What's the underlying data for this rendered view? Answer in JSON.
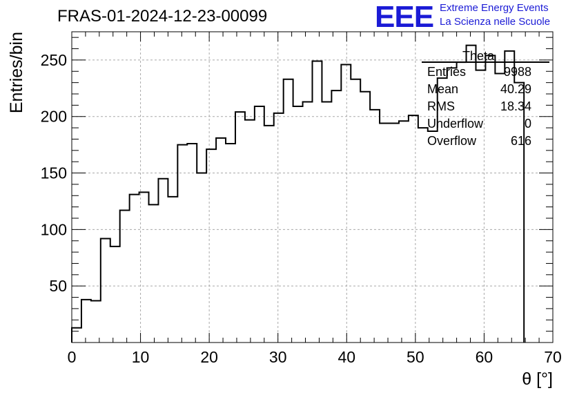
{
  "title": "FRAS-01-2024-12-23-00099",
  "logo": {
    "mark": "EEE",
    "line1": "Extreme Energy Events",
    "line2": "La Scienza nelle Scuole",
    "color": "#1b1bd6"
  },
  "chart_data": {
    "type": "histogram",
    "xlabel": "θ [°]",
    "ylabel": "Entries/bin",
    "xlim": [
      0,
      70
    ],
    "ylim": [
      0,
      275
    ],
    "xticks": [
      0,
      10,
      20,
      30,
      40,
      50,
      60,
      70
    ],
    "yticks": [
      50,
      100,
      150,
      200,
      250
    ],
    "grid": true,
    "bin_width": 1.4,
    "values": [
      13,
      38,
      37,
      92,
      85,
      117,
      131,
      133,
      122,
      145,
      129,
      175,
      176,
      150,
      171,
      181,
      176,
      204,
      197,
      209,
      192,
      203,
      233,
      209,
      213,
      249,
      213,
      223,
      246,
      233,
      222,
      206,
      194,
      194,
      196,
      201,
      190,
      187,
      234,
      243,
      248,
      263,
      241,
      254,
      238,
      258,
      230
    ],
    "stats": {
      "name": "Theta",
      "rows": [
        {
          "label": "Entries",
          "value": "9988"
        },
        {
          "label": "Mean",
          "value": "40.29"
        },
        {
          "label": "RMS",
          "value": "18.34"
        },
        {
          "label": "Underflow",
          "value": "0"
        },
        {
          "label": "Overflow",
          "value": "616"
        }
      ]
    }
  }
}
